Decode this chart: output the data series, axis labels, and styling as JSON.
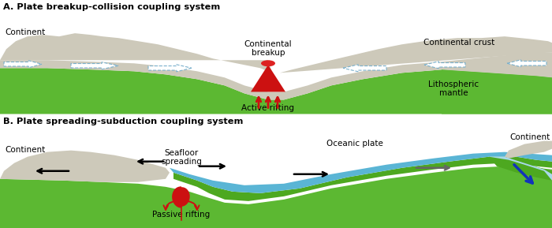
{
  "title_A": "A. Plate breakup-collision coupling system",
  "title_B": "B. Plate spreading-subduction coupling system",
  "bg_color": "#ffffff",
  "continent_color": "#cdc9ba",
  "mantle_color": "#5cb832",
  "water_color": "#5ab5d5",
  "rift_red": "#cc1111",
  "arrow_blue": "#1133bb",
  "label_continent_A": "Continent",
  "label_breakup": "Continental\nbreakup",
  "label_active": "Active rifting",
  "label_crust": "Continental crust",
  "label_mantle": "Lithospheric\nmantle",
  "label_continent_B_left": "Continent",
  "label_seafloor": "Seafloor\nspreading",
  "label_oceanic": "Oceanic plate",
  "label_passive": "Passive rifting",
  "label_continent_B_right": "Continent"
}
